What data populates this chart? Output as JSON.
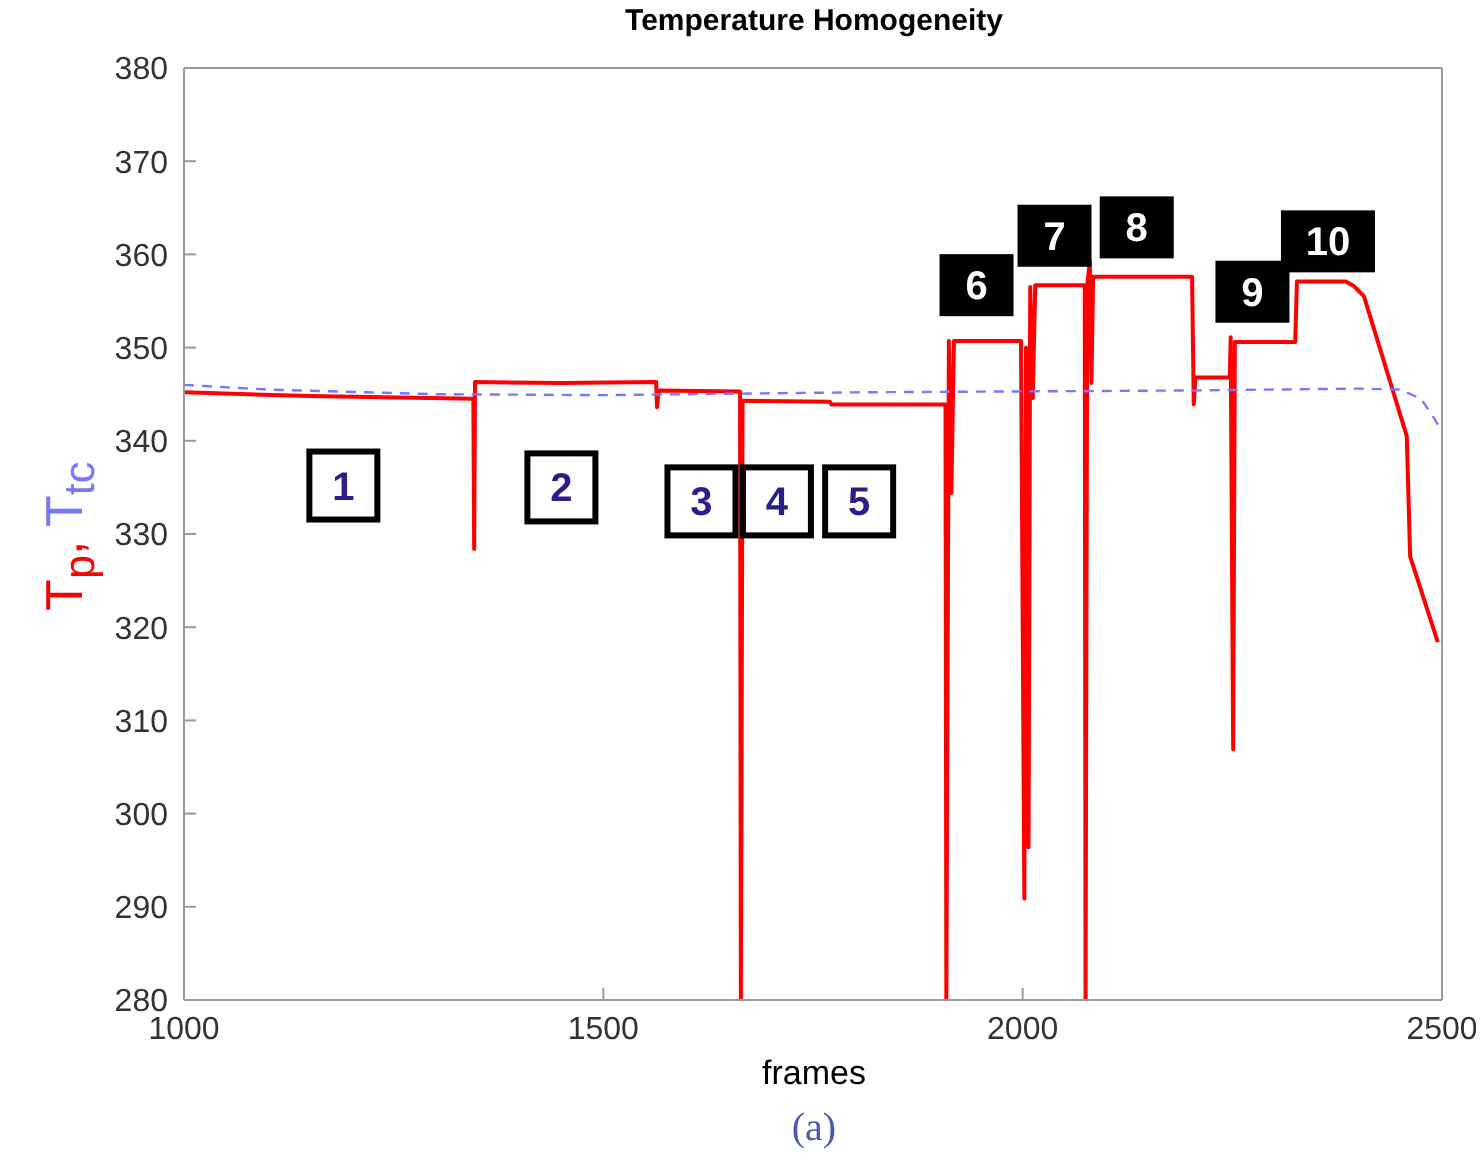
{
  "chart_data": {
    "type": "line",
    "title": "Temperature Homogeneity",
    "xlabel": "frames",
    "ylabel": "T$_{p}$, T$_{tc}$",
    "xlim": [
      1000,
      2500
    ],
    "xticks": [
      1000,
      1500,
      2000,
      2500
    ],
    "ylim": [
      280,
      380
    ],
    "yticks": [
      280,
      290,
      300,
      310,
      320,
      330,
      340,
      350,
      360,
      370,
      380
    ],
    "marker": "none",
    "series": [
      {
        "color": "#ff0000",
        "line_style": "solid",
        "x": [
          1000,
          1150,
          1345,
          1346,
          1347,
          1450,
          1563,
          1564,
          1566,
          1663,
          1664,
          1666,
          1770,
          1772,
          1908,
          1909,
          1912,
          1915,
          1918,
          1998,
          2002,
          2004,
          2007,
          2009,
          2012,
          2015,
          2074,
          2075,
          2077,
          2080,
          2082,
          2084,
          2202,
          2204,
          2206,
          2247,
          2248,
          2251,
          2253,
          2325,
          2327,
          2385,
          2395,
          2407,
          2458,
          2462,
          2495
        ],
        "values": [
          345.2,
          344.8,
          344.5,
          328.4,
          346.3,
          346.2,
          346.3,
          343.6,
          345.4,
          345.3,
          280,
          344.3,
          344.2,
          343.9,
          343.9,
          280,
          350.7,
          334.4,
          350.7,
          350.7,
          290.9,
          350,
          296.4,
          356.5,
          344.6,
          356.7,
          356.7,
          280,
          356.7,
          359.2,
          346.2,
          357.6,
          357.6,
          343.9,
          346.8,
          346.8,
          351.1,
          306.9,
          350.6,
          350.6,
          357.1,
          357.1,
          356.6,
          355.5,
          340.5,
          327.6,
          318.4
        ]
      },
      {
        "color": "#7777ff",
        "line_style": "dashed",
        "x": [
          1000,
          1100,
          1300,
          1500,
          1800,
          2000,
          2200,
          2400,
          2450,
          2475,
          2490,
          2500
        ],
        "values": [
          346,
          345.5,
          345,
          344.9,
          345.2,
          345.3,
          345.4,
          345.6,
          345.5,
          344.5,
          342.5,
          341
        ]
      }
    ],
    "annotations": [
      {
        "text": "1",
        "x": 1190,
        "y": 335.2
      },
      {
        "text": "2",
        "x": 1450,
        "y": 335
      },
      {
        "text": "3",
        "x": 1617,
        "y": 333.5
      },
      {
        "text": "4",
        "x": 1707,
        "y": 333.5
      },
      {
        "text": "5",
        "x": 1805,
        "y": 333.5
      },
      {
        "text": "6",
        "x": 1945,
        "y": 356.7
      },
      {
        "text": "7",
        "x": 2038,
        "y": 362
      },
      {
        "text": "8",
        "x": 2136,
        "y": 362.9
      },
      {
        "text": "9",
        "x": 2274,
        "y": 356
      },
      {
        "text": "10",
        "x": 2364,
        "y": 361.4
      },
      "(a)"
    ]
  }
}
